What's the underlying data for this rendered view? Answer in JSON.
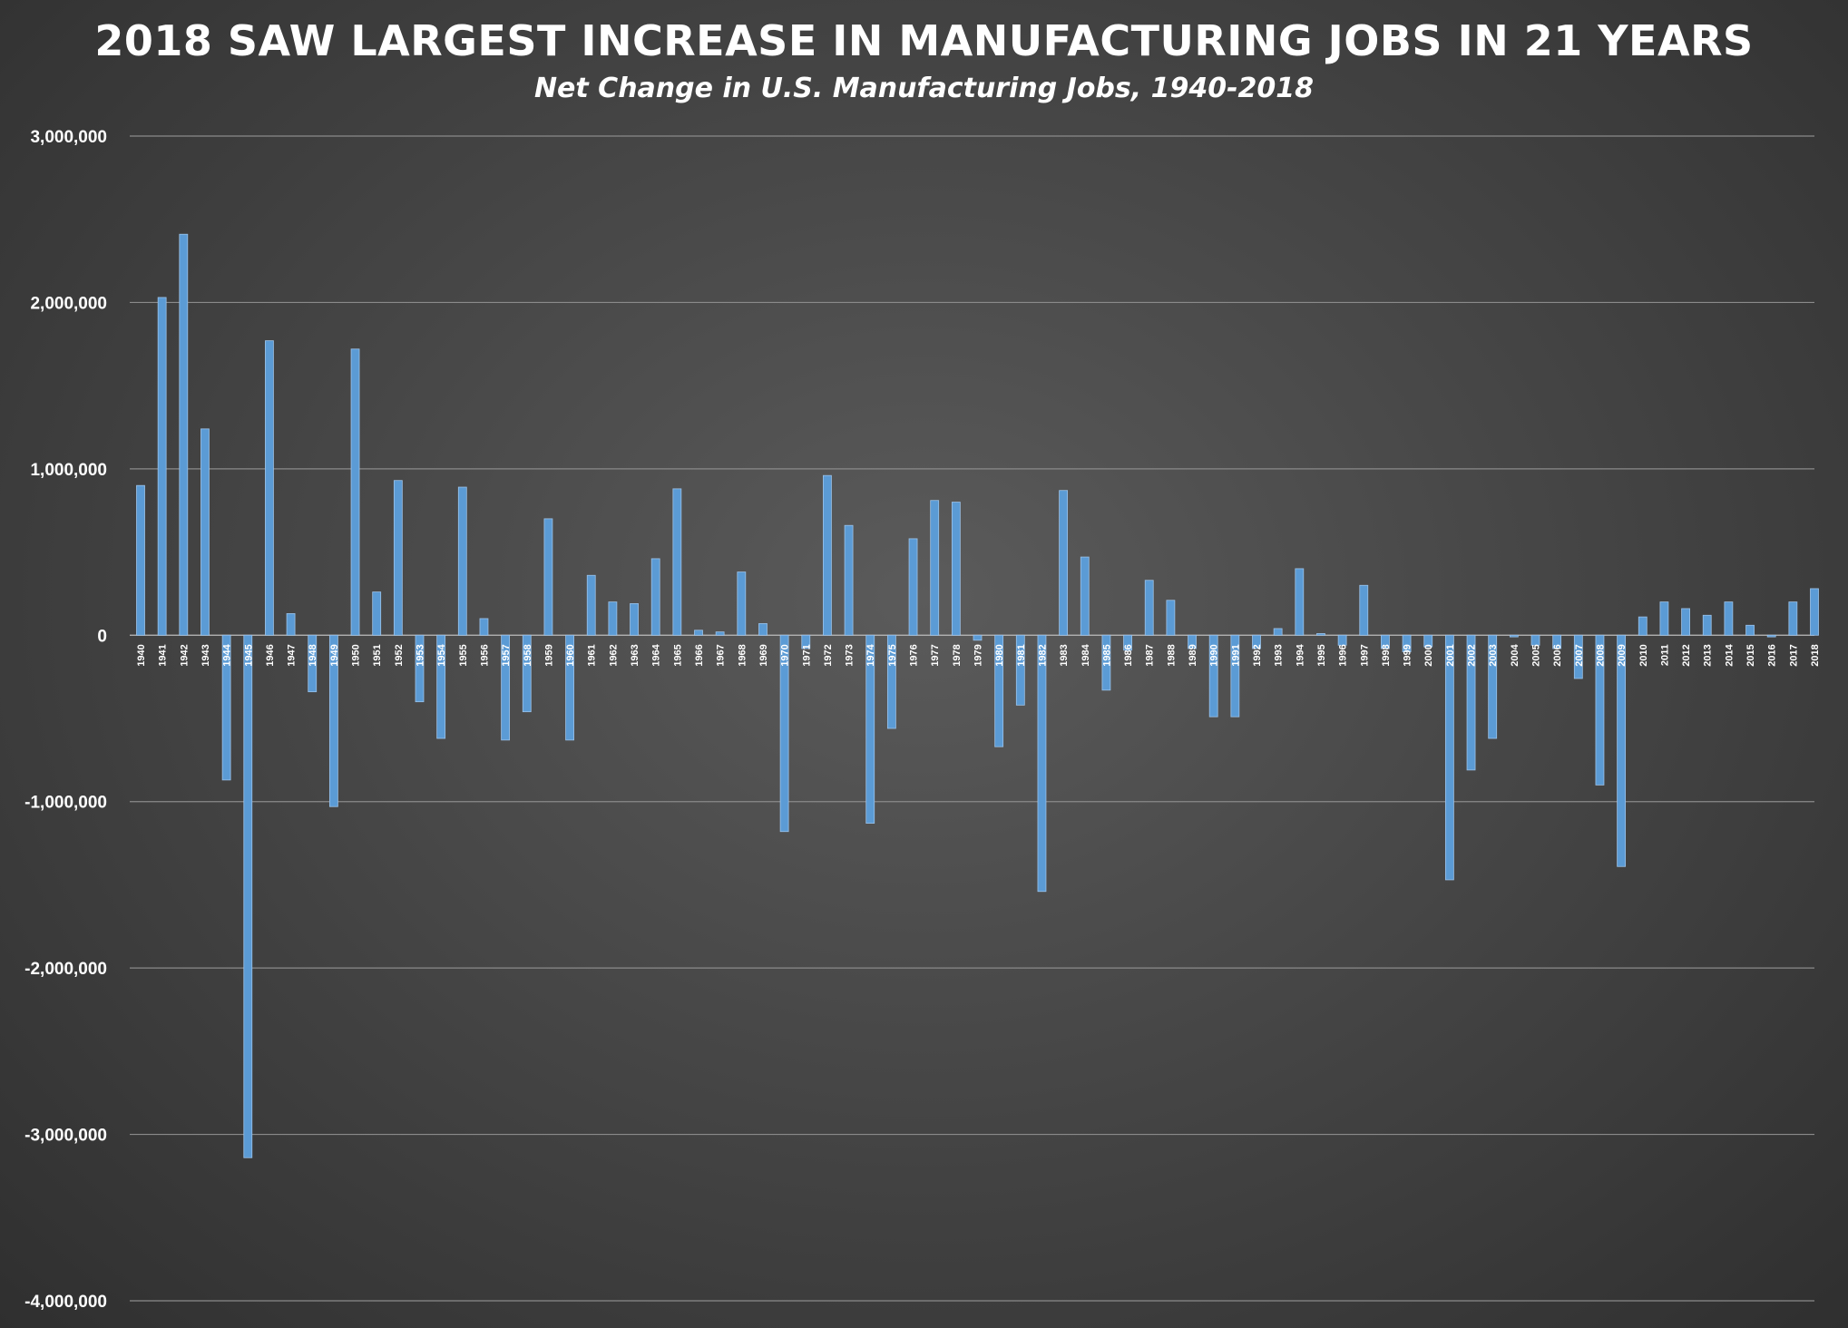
{
  "chart_data": {
    "type": "bar",
    "title": "2018 SAW LARGEST INCREASE IN MANUFACTURING JOBS IN 21 YEARS",
    "subtitle": "Net Change in U.S. Manufacturing Jobs, 1940-2018",
    "xlabel": "",
    "ylabel": "",
    "ylim": [
      -4000000,
      3000000
    ],
    "yticks": [
      3000000,
      2000000,
      1000000,
      0,
      -1000000,
      -2000000,
      -3000000,
      -4000000
    ],
    "ytick_labels": [
      "3,000,000",
      "2,000,000",
      "1,000,000",
      "0",
      "-1,000,000",
      "-2,000,000",
      "-3,000,000",
      "-4,000,000"
    ],
    "grid": true,
    "bar_color": "#5b9bd5",
    "categories": [
      "1940",
      "1941",
      "1942",
      "1943",
      "1944",
      "1945",
      "1946",
      "1947",
      "1948",
      "1949",
      "1950",
      "1951",
      "1952",
      "1953",
      "1954",
      "1955",
      "1956",
      "1957",
      "1958",
      "1959",
      "1960",
      "1961",
      "1962",
      "1963",
      "1964",
      "1965",
      "1966",
      "1967",
      "1968",
      "1969",
      "1970",
      "1971",
      "1972",
      "1973",
      "1974",
      "1975",
      "1976",
      "1977",
      "1978",
      "1979",
      "1980",
      "1981",
      "1982",
      "1983",
      "1984",
      "1985",
      "1986",
      "1987",
      "1988",
      "1989",
      "1990",
      "1991",
      "1992",
      "1993",
      "1994",
      "1995",
      "1996",
      "1997",
      "1998",
      "1999",
      "2000",
      "2001",
      "2002",
      "2003",
      "2004",
      "2005",
      "2006",
      "2007",
      "2008",
      "2009",
      "2010",
      "2011",
      "2012",
      "2013",
      "2014",
      "2015",
      "2016",
      "2017",
      "2018"
    ],
    "values": [
      900000,
      2030000,
      2410000,
      1240000,
      -870000,
      -3140000,
      1770000,
      130000,
      -340000,
      -1030000,
      1720000,
      260000,
      930000,
      -400000,
      -620000,
      890000,
      100000,
      -630000,
      -460000,
      700000,
      -630000,
      360000,
      200000,
      190000,
      460000,
      880000,
      30000,
      20000,
      380000,
      70000,
      -1180000,
      -80000,
      960000,
      660000,
      -1130000,
      -560000,
      580000,
      810000,
      800000,
      -30000,
      -670000,
      -420000,
      -1540000,
      870000,
      470000,
      -330000,
      -90000,
      330000,
      210000,
      -80000,
      -490000,
      -490000,
      -80000,
      40000,
      400000,
      10000,
      -60000,
      300000,
      -80000,
      -100000,
      -70000,
      -1470000,
      -810000,
      -620000,
      -10000,
      -60000,
      -80000,
      -260000,
      -900000,
      -1390000,
      110000,
      200000,
      160000,
      120000,
      200000,
      60000,
      -10000,
      200000,
      280000
    ]
  }
}
